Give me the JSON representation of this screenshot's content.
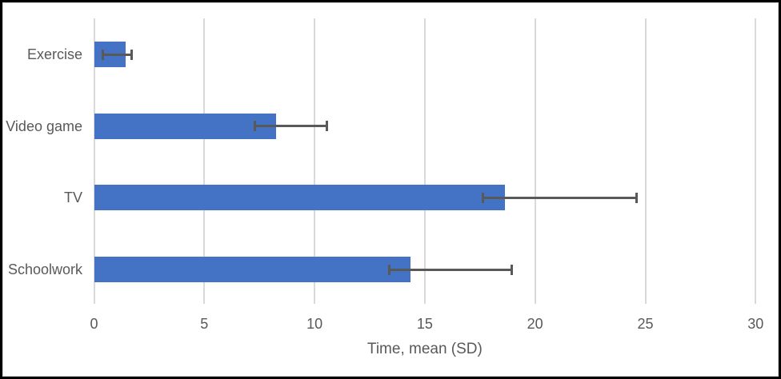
{
  "chart_data": {
    "type": "bar",
    "orientation": "horizontal",
    "title": "",
    "xlabel": "Time, mean (SD)",
    "ylabel": "",
    "categories": [
      "Exercise",
      "Video game",
      "TV",
      "Schoolwork"
    ],
    "values": [
      1.45,
      8.25,
      18.65,
      14.35
    ],
    "error_bars": [
      {
        "low": 0.4,
        "high": 1.7
      },
      {
        "low": 7.3,
        "high": 10.55
      },
      {
        "low": 17.65,
        "high": 24.6
      },
      {
        "low": 13.4,
        "high": 18.95
      }
    ],
    "xlim": [
      0,
      30
    ],
    "xticks": [
      0,
      5,
      10,
      15,
      20,
      25,
      30
    ],
    "grid": true,
    "legend": false,
    "colors": {
      "bar": "#4472C4",
      "error": "#595959",
      "grid": "#D9D9D9",
      "text": "#595959",
      "background": "#FFFFFF",
      "outer_frame": "#000000",
      "chart_border": "#D9D9D9"
    }
  }
}
